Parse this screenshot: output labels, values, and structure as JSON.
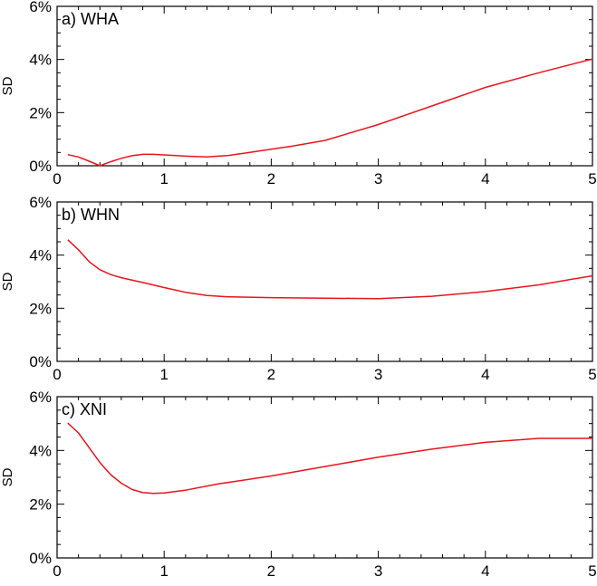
{
  "chart_data": [
    {
      "type": "line",
      "title": "a) WHA",
      "xlabel": "",
      "ylabel": "SD",
      "xlim": [
        0,
        5
      ],
      "ylim": [
        0,
        6
      ],
      "x_ticks": [
        "0",
        "1",
        "2",
        "3",
        "4",
        "5"
      ],
      "y_ticks": [
        "0%",
        "2%",
        "4%",
        "6%"
      ],
      "grid": false,
      "series": [
        {
          "color": "#e8141c",
          "x": [
            0.1,
            0.2,
            0.3,
            0.4,
            0.5,
            0.6,
            0.7,
            0.8,
            0.9,
            1.0,
            1.2,
            1.4,
            1.6,
            1.8,
            2.0,
            2.2,
            2.5,
            3.0,
            3.5,
            4.0,
            4.5,
            5.0
          ],
          "y": [
            0.42,
            0.33,
            0.17,
            0.0,
            0.15,
            0.28,
            0.38,
            0.43,
            0.43,
            0.41,
            0.36,
            0.33,
            0.39,
            0.5,
            0.62,
            0.74,
            0.95,
            1.55,
            2.25,
            2.95,
            3.5,
            4.02
          ]
        }
      ]
    },
    {
      "type": "line",
      "title": "b) WHN",
      "xlabel": "",
      "ylabel": "SD",
      "xlim": [
        0,
        5
      ],
      "ylim": [
        0,
        6
      ],
      "x_ticks": [
        "0",
        "1",
        "2",
        "3",
        "4",
        "5"
      ],
      "y_ticks": [
        "0%",
        "2%",
        "4%",
        "6%"
      ],
      "grid": false,
      "series": [
        {
          "color": "#e8141c",
          "x": [
            0.1,
            0.2,
            0.3,
            0.4,
            0.5,
            0.6,
            0.8,
            1.0,
            1.2,
            1.4,
            1.6,
            2.0,
            2.5,
            3.0,
            3.5,
            4.0,
            4.5,
            5.0
          ],
          "y": [
            4.58,
            4.2,
            3.75,
            3.45,
            3.27,
            3.15,
            2.97,
            2.78,
            2.6,
            2.48,
            2.43,
            2.4,
            2.38,
            2.36,
            2.45,
            2.63,
            2.88,
            3.22
          ]
        }
      ]
    },
    {
      "type": "line",
      "title": "c) XNI",
      "xlabel": "",
      "ylabel": "SD",
      "xlim": [
        0,
        5
      ],
      "ylim": [
        0,
        6
      ],
      "x_ticks": [
        "0",
        "1",
        "2",
        "3",
        "4",
        "5"
      ],
      "y_ticks": [
        "0%",
        "2%",
        "4%",
        "6%"
      ],
      "grid": false,
      "series": [
        {
          "color": "#e8141c",
          "x": [
            0.1,
            0.2,
            0.3,
            0.4,
            0.5,
            0.6,
            0.7,
            0.8,
            0.9,
            1.0,
            1.2,
            1.5,
            2.0,
            2.5,
            3.0,
            3.5,
            4.0,
            4.5,
            5.0
          ],
          "y": [
            5.02,
            4.65,
            4.1,
            3.55,
            3.1,
            2.78,
            2.55,
            2.43,
            2.4,
            2.42,
            2.52,
            2.75,
            3.05,
            3.4,
            3.75,
            4.05,
            4.3,
            4.45,
            4.45
          ]
        }
      ]
    }
  ]
}
